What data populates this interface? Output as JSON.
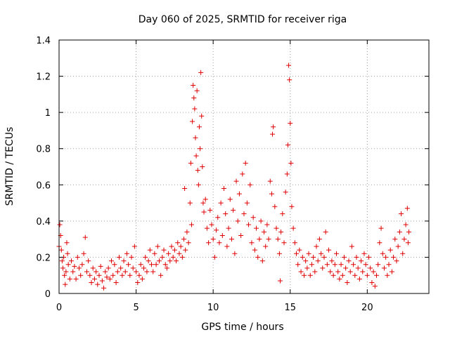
{
  "chart_data": {
    "type": "scatter",
    "title": "Day 060 of 2025, SRMTID for receiver riga",
    "xlabel": "GPS time / hours",
    "ylabel": "SRMTID / TECUs",
    "xlim": [
      0,
      24
    ],
    "ylim": [
      0,
      1.4
    ],
    "x_ticks": [
      0,
      5,
      10,
      15,
      20
    ],
    "x_tick_labels": [
      "0",
      "5",
      "10",
      "15",
      "20"
    ],
    "y_ticks": [
      0,
      0.2,
      0.4,
      0.6,
      0.8,
      1.0,
      1.2,
      1.4
    ],
    "y_tick_labels": [
      "0",
      "0.2",
      "0.4",
      "0.6",
      "0.8",
      "1",
      "1.2",
      "1.4"
    ],
    "grid": true,
    "marker": "plus",
    "color": "#e00000",
    "series": [
      {
        "name": "riga",
        "points": [
          [
            0.0,
            0.26
          ],
          [
            0.05,
            0.38
          ],
          [
            0.1,
            0.32
          ],
          [
            0.15,
            0.24
          ],
          [
            0.2,
            0.18
          ],
          [
            0.25,
            0.14
          ],
          [
            0.3,
            0.2
          ],
          [
            0.35,
            0.1
          ],
          [
            0.4,
            0.05
          ],
          [
            0.45,
            0.12
          ],
          [
            0.5,
            0.28
          ],
          [
            0.55,
            0.22
          ],
          [
            0.6,
            0.16
          ],
          [
            0.7,
            0.08
          ],
          [
            0.8,
            0.18
          ],
          [
            0.9,
            0.12
          ],
          [
            1.0,
            0.15
          ],
          [
            1.1,
            0.08
          ],
          [
            1.2,
            0.2
          ],
          [
            1.3,
            0.14
          ],
          [
            1.4,
            0.1
          ],
          [
            1.5,
            0.16
          ],
          [
            1.6,
            0.22
          ],
          [
            1.7,
            0.31
          ],
          [
            1.8,
            0.12
          ],
          [
            1.9,
            0.18
          ],
          [
            2.0,
            0.1
          ],
          [
            2.1,
            0.06
          ],
          [
            2.2,
            0.14
          ],
          [
            2.3,
            0.08
          ],
          [
            2.4,
            0.12
          ],
          [
            2.5,
            0.05
          ],
          [
            2.6,
            0.1
          ],
          [
            2.7,
            0.15
          ],
          [
            2.8,
            0.07
          ],
          [
            2.9,
            0.03
          ],
          [
            3.0,
            0.12
          ],
          [
            3.1,
            0.09
          ],
          [
            3.2,
            0.14
          ],
          [
            3.3,
            0.08
          ],
          [
            3.4,
            0.18
          ],
          [
            3.5,
            0.1
          ],
          [
            3.6,
            0.16
          ],
          [
            3.7,
            0.06
          ],
          [
            3.8,
            0.12
          ],
          [
            3.9,
            0.2
          ],
          [
            4.0,
            0.14
          ],
          [
            4.1,
            0.1
          ],
          [
            4.2,
            0.18
          ],
          [
            4.3,
            0.12
          ],
          [
            4.4,
            0.22
          ],
          [
            4.5,
            0.16
          ],
          [
            4.6,
            0.1
          ],
          [
            4.7,
            0.2
          ],
          [
            4.8,
            0.14
          ],
          [
            4.9,
            0.26
          ],
          [
            5.0,
            0.12
          ],
          [
            5.1,
            0.06
          ],
          [
            5.2,
            0.1
          ],
          [
            5.3,
            0.16
          ],
          [
            5.4,
            0.08
          ],
          [
            5.5,
            0.14
          ],
          [
            5.6,
            0.2
          ],
          [
            5.7,
            0.12
          ],
          [
            5.8,
            0.18
          ],
          [
            5.9,
            0.24
          ],
          [
            6.0,
            0.16
          ],
          [
            6.1,
            0.12
          ],
          [
            6.2,
            0.22
          ],
          [
            6.3,
            0.16
          ],
          [
            6.4,
            0.26
          ],
          [
            6.5,
            0.18
          ],
          [
            6.6,
            0.1
          ],
          [
            6.7,
            0.2
          ],
          [
            6.8,
            0.24
          ],
          [
            6.9,
            0.16
          ],
          [
            7.0,
            0.14
          ],
          [
            7.1,
            0.22
          ],
          [
            7.2,
            0.18
          ],
          [
            7.3,
            0.26
          ],
          [
            7.4,
            0.2
          ],
          [
            7.5,
            0.24
          ],
          [
            7.6,
            0.18
          ],
          [
            7.7,
            0.28
          ],
          [
            7.8,
            0.22
          ],
          [
            7.9,
            0.26
          ],
          [
            8.0,
            0.2
          ],
          [
            8.1,
            0.3
          ],
          [
            8.15,
            0.58
          ],
          [
            8.2,
            0.24
          ],
          [
            8.3,
            0.34
          ],
          [
            8.4,
            0.28
          ],
          [
            8.5,
            0.5
          ],
          [
            8.55,
            0.72
          ],
          [
            8.6,
            0.38
          ],
          [
            8.65,
            0.95
          ],
          [
            8.7,
            1.15
          ],
          [
            8.75,
            1.08
          ],
          [
            8.8,
            1.02
          ],
          [
            8.85,
            0.86
          ],
          [
            8.9,
            0.76
          ],
          [
            8.95,
            1.12
          ],
          [
            9.0,
            0.68
          ],
          [
            9.05,
            0.6
          ],
          [
            9.1,
            0.92
          ],
          [
            9.15,
            0.8
          ],
          [
            9.2,
            1.22
          ],
          [
            9.25,
            0.98
          ],
          [
            9.3,
            0.7
          ],
          [
            9.35,
            0.5
          ],
          [
            9.4,
            0.45
          ],
          [
            9.5,
            0.52
          ],
          [
            9.6,
            0.36
          ],
          [
            9.7,
            0.28
          ],
          [
            9.8,
            0.46
          ],
          [
            9.9,
            0.38
          ],
          [
            10.0,
            0.3
          ],
          [
            10.1,
            0.2
          ],
          [
            10.2,
            0.35
          ],
          [
            10.3,
            0.42
          ],
          [
            10.4,
            0.28
          ],
          [
            10.5,
            0.5
          ],
          [
            10.6,
            0.32
          ],
          [
            10.7,
            0.58
          ],
          [
            10.8,
            0.44
          ],
          [
            10.9,
            0.26
          ],
          [
            11.0,
            0.36
          ],
          [
            11.1,
            0.52
          ],
          [
            11.2,
            0.3
          ],
          [
            11.3,
            0.46
          ],
          [
            11.4,
            0.22
          ],
          [
            11.5,
            0.62
          ],
          [
            11.6,
            0.4
          ],
          [
            11.7,
            0.55
          ],
          [
            11.8,
            0.32
          ],
          [
            11.9,
            0.66
          ],
          [
            12.0,
            0.44
          ],
          [
            12.1,
            0.72
          ],
          [
            12.2,
            0.5
          ],
          [
            12.3,
            0.38
          ],
          [
            12.4,
            0.6
          ],
          [
            12.5,
            0.28
          ],
          [
            12.6,
            0.42
          ],
          [
            12.7,
            0.24
          ],
          [
            12.8,
            0.36
          ],
          [
            12.9,
            0.2
          ],
          [
            13.0,
            0.3
          ],
          [
            13.1,
            0.4
          ],
          [
            13.2,
            0.18
          ],
          [
            13.3,
            0.34
          ],
          [
            13.4,
            0.26
          ],
          [
            13.5,
            0.38
          ],
          [
            13.6,
            0.3
          ],
          [
            13.7,
            0.62
          ],
          [
            13.8,
            0.55
          ],
          [
            13.85,
            0.88
          ],
          [
            13.9,
            0.92
          ],
          [
            14.0,
            0.48
          ],
          [
            14.1,
            0.36
          ],
          [
            14.2,
            0.3
          ],
          [
            14.3,
            0.22
          ],
          [
            14.35,
            0.07
          ],
          [
            14.4,
            0.34
          ],
          [
            14.5,
            0.44
          ],
          [
            14.6,
            0.28
          ],
          [
            14.7,
            0.56
          ],
          [
            14.8,
            0.66
          ],
          [
            14.85,
            0.82
          ],
          [
            14.9,
            1.26
          ],
          [
            14.95,
            1.18
          ],
          [
            15.0,
            0.94
          ],
          [
            15.05,
            0.72
          ],
          [
            15.1,
            0.48
          ],
          [
            15.2,
            0.36
          ],
          [
            15.3,
            0.28
          ],
          [
            15.4,
            0.22
          ],
          [
            15.5,
            0.16
          ],
          [
            15.6,
            0.24
          ],
          [
            15.7,
            0.12
          ],
          [
            15.8,
            0.2
          ],
          [
            15.9,
            0.1
          ],
          [
            16.0,
            0.18
          ],
          [
            16.1,
            0.14
          ],
          [
            16.2,
            0.22
          ],
          [
            16.3,
            0.1
          ],
          [
            16.4,
            0.16
          ],
          [
            16.5,
            0.2
          ],
          [
            16.6,
            0.12
          ],
          [
            16.7,
            0.26
          ],
          [
            16.8,
            0.18
          ],
          [
            16.9,
            0.3
          ],
          [
            17.0,
            0.22
          ],
          [
            17.1,
            0.14
          ],
          [
            17.2,
            0.2
          ],
          [
            17.3,
            0.34
          ],
          [
            17.4,
            0.16
          ],
          [
            17.5,
            0.24
          ],
          [
            17.6,
            0.12
          ],
          [
            17.7,
            0.18
          ],
          [
            17.8,
            0.1
          ],
          [
            17.9,
            0.16
          ],
          [
            18.0,
            0.22
          ],
          [
            18.1,
            0.12
          ],
          [
            18.2,
            0.08
          ],
          [
            18.3,
            0.16
          ],
          [
            18.4,
            0.1
          ],
          [
            18.5,
            0.2
          ],
          [
            18.6,
            0.14
          ],
          [
            18.7,
            0.06
          ],
          [
            18.8,
            0.18
          ],
          [
            18.9,
            0.12
          ],
          [
            19.0,
            0.26
          ],
          [
            19.1,
            0.16
          ],
          [
            19.2,
            0.1
          ],
          [
            19.3,
            0.2
          ],
          [
            19.4,
            0.14
          ],
          [
            19.5,
            0.08
          ],
          [
            19.6,
            0.18
          ],
          [
            19.7,
            0.12
          ],
          [
            19.8,
            0.22
          ],
          [
            19.9,
            0.16
          ],
          [
            20.0,
            0.1
          ],
          [
            20.1,
            0.2
          ],
          [
            20.2,
            0.14
          ],
          [
            20.3,
            0.06
          ],
          [
            20.4,
            0.12
          ],
          [
            20.5,
            0.04
          ],
          [
            20.6,
            0.1
          ],
          [
            20.7,
            0.16
          ],
          [
            20.8,
            0.28
          ],
          [
            20.9,
            0.36
          ],
          [
            21.0,
            0.22
          ],
          [
            21.1,
            0.14
          ],
          [
            21.2,
            0.2
          ],
          [
            21.3,
            0.1
          ],
          [
            21.4,
            0.16
          ],
          [
            21.5,
            0.24
          ],
          [
            21.6,
            0.12
          ],
          [
            21.7,
            0.2
          ],
          [
            21.8,
            0.3
          ],
          [
            21.9,
            0.18
          ],
          [
            22.0,
            0.26
          ],
          [
            22.1,
            0.34
          ],
          [
            22.2,
            0.44
          ],
          [
            22.3,
            0.22
          ],
          [
            22.4,
            0.3
          ],
          [
            22.5,
            0.38
          ],
          [
            22.6,
            0.47
          ],
          [
            22.65,
            0.28
          ],
          [
            22.7,
            0.34
          ]
        ]
      }
    ]
  }
}
